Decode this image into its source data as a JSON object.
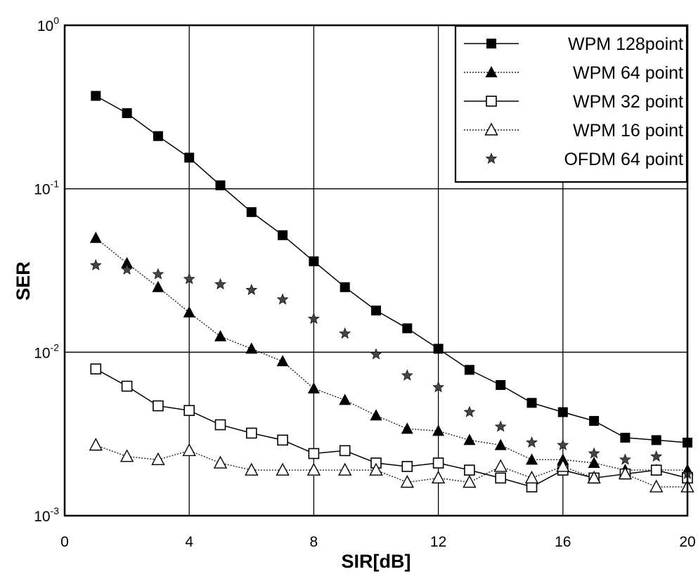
{
  "chart_data": {
    "type": "line",
    "title": "",
    "xlabel": "SIR[dB]",
    "ylabel": "SER",
    "xlim": [
      0,
      20
    ],
    "ylim": [
      0.001,
      1
    ],
    "yscale": "log",
    "grid": true,
    "legend_position": "top-right",
    "x_ticks": [
      "0",
      "4",
      "8",
      "12",
      "16",
      "20"
    ],
    "y_ticks": [
      {
        "base": "10",
        "exp": "0"
      },
      {
        "base": "10",
        "exp": "-1"
      },
      {
        "base": "10",
        "exp": "-2"
      },
      {
        "base": "10",
        "exp": "-3"
      }
    ],
    "x": [
      1,
      2,
      3,
      4,
      5,
      6,
      7,
      8,
      9,
      10,
      11,
      12,
      13,
      14,
      15,
      16,
      17,
      18,
      19,
      20
    ],
    "series": [
      {
        "name": "WPM  128point",
        "marker": "square-filled",
        "line": "solid",
        "values": [
          0.37,
          0.29,
          0.21,
          0.155,
          0.105,
          0.072,
          0.052,
          0.036,
          0.025,
          0.018,
          0.014,
          0.0105,
          0.0078,
          0.0063,
          0.0049,
          0.0043,
          0.0038,
          0.003,
          0.0029,
          0.0028
        ]
      },
      {
        "name": "WPM  64 point",
        "marker": "triangle-filled",
        "line": "dotted",
        "values": [
          0.05,
          0.035,
          0.025,
          0.0175,
          0.0125,
          0.0105,
          0.0088,
          0.006,
          0.0051,
          0.0041,
          0.0034,
          0.0033,
          0.0029,
          0.0027,
          0.0022,
          0.0022,
          0.0021,
          0.0019,
          0.0019,
          0.0019
        ]
      },
      {
        "name": "WPM  32 point",
        "marker": "square-open",
        "line": "solid",
        "values": [
          0.0079,
          0.0062,
          0.0047,
          0.0044,
          0.0036,
          0.0032,
          0.0029,
          0.0024,
          0.0025,
          0.0021,
          0.002,
          0.0021,
          0.0019,
          0.0017,
          0.0015,
          0.0019,
          0.0017,
          0.0018,
          0.0019,
          0.0017
        ]
      },
      {
        "name": "WPM  16 point",
        "marker": "triangle-open",
        "line": "dotted",
        "values": [
          0.0027,
          0.0023,
          0.0022,
          0.0025,
          0.0021,
          0.0019,
          0.0019,
          0.0019,
          0.0019,
          0.0019,
          0.0016,
          0.0017,
          0.0016,
          0.002,
          0.0017,
          0.002,
          0.0017,
          0.0018,
          0.0015,
          0.0015
        ]
      },
      {
        "name": "OFDM 64 point",
        "marker": "star",
        "line": "none",
        "values": [
          0.034,
          0.032,
          0.03,
          0.028,
          0.026,
          0.024,
          0.021,
          0.016,
          0.013,
          0.0097,
          0.0072,
          0.0061,
          0.0043,
          0.0035,
          0.0028,
          0.0027,
          0.0024,
          0.0022,
          0.0023,
          0.0018
        ]
      }
    ]
  }
}
